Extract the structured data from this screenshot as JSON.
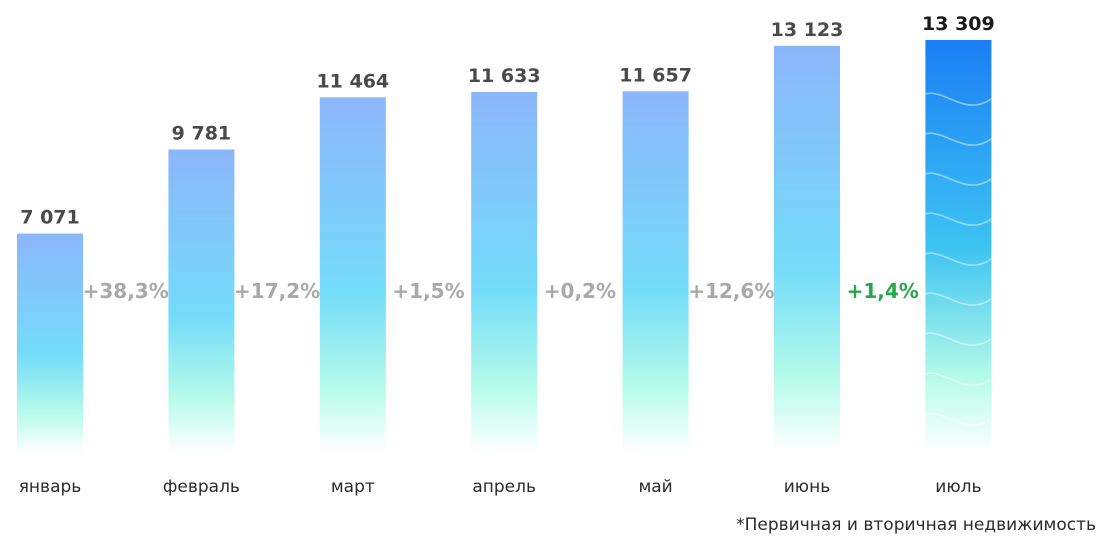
{
  "chart_data": {
    "type": "bar",
    "title": "",
    "xlabel": "",
    "ylabel": "",
    "categories": [
      "январь",
      "февраль",
      "март",
      "апрель",
      "май",
      "июнь",
      "июль"
    ],
    "values": [
      7071,
      9781,
      11464,
      11633,
      11657,
      13123,
      13309
    ],
    "value_labels": [
      "7 071",
      "9 781",
      "11 464",
      "11 633",
      "11 657",
      "13 123",
      "13 309"
    ],
    "changes": [
      "+38,3%",
      "+17,2%",
      "+1,5%",
      "+0,2%",
      "+12,6%",
      "+1,4%"
    ],
    "ylim": [
      0,
      13309
    ],
    "grid": false,
    "footnote": "*Первичная и вторичная недвижимость",
    "colors": {
      "bar_top": "#8bb6fb",
      "bar_mid": "#74dcf9",
      "bar_low": "#b6fbe9",
      "highlight_top": "#1a7ff5",
      "highlight_mid": "#3cc3f2",
      "change_text": "#a9a9a9",
      "highlight_change_text": "#27a84a"
    }
  }
}
